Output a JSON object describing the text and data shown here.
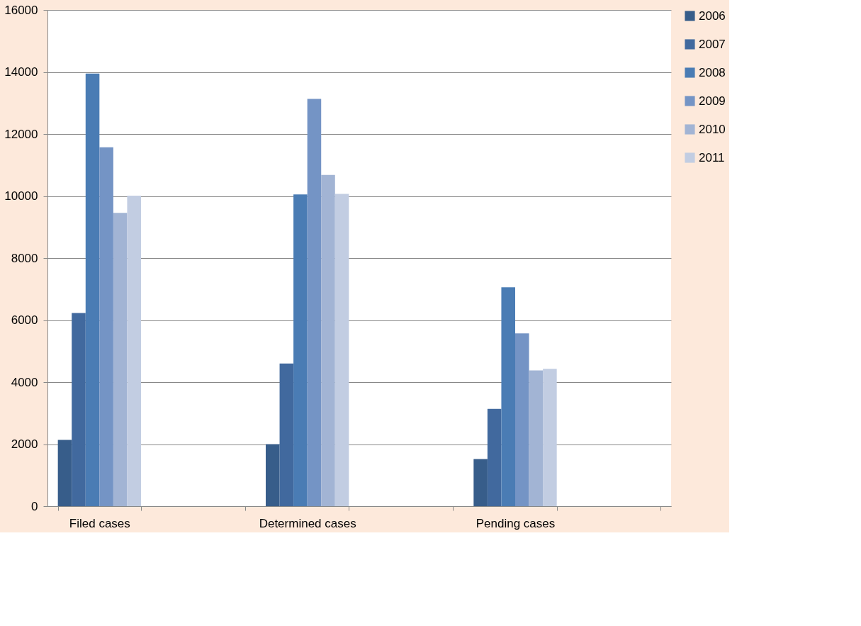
{
  "chart_data": {
    "type": "bar",
    "categories": [
      "Filed cases",
      null,
      "Determined cases",
      null,
      "Pending cases",
      null
    ],
    "series": [
      {
        "name": "2006",
        "color": "#375d8a",
        "values": [
          2140,
          null,
          2000,
          null,
          1520,
          null
        ]
      },
      {
        "name": "2007",
        "color": "#41699e",
        "values": [
          6230,
          null,
          4600,
          null,
          3140,
          null
        ]
      },
      {
        "name": "2008",
        "color": "#4a7cb4",
        "values": [
          13950,
          null,
          10050,
          null,
          7060,
          null
        ]
      },
      {
        "name": "2009",
        "color": "#7494c5",
        "values": [
          11570,
          null,
          13130,
          null,
          5570,
          null
        ]
      },
      {
        "name": "2010",
        "color": "#a2b4d4",
        "values": [
          9460,
          null,
          10680,
          null,
          4380,
          null
        ]
      },
      {
        "name": "2011",
        "color": "#c2cde2",
        "values": [
          10010,
          null,
          10070,
          null,
          4430,
          null
        ]
      }
    ],
    "ylim": [
      0,
      16000
    ],
    "yticks": [
      0,
      2000,
      4000,
      6000,
      8000,
      10000,
      12000,
      14000,
      16000
    ],
    "grid": "y",
    "legend": "right"
  }
}
